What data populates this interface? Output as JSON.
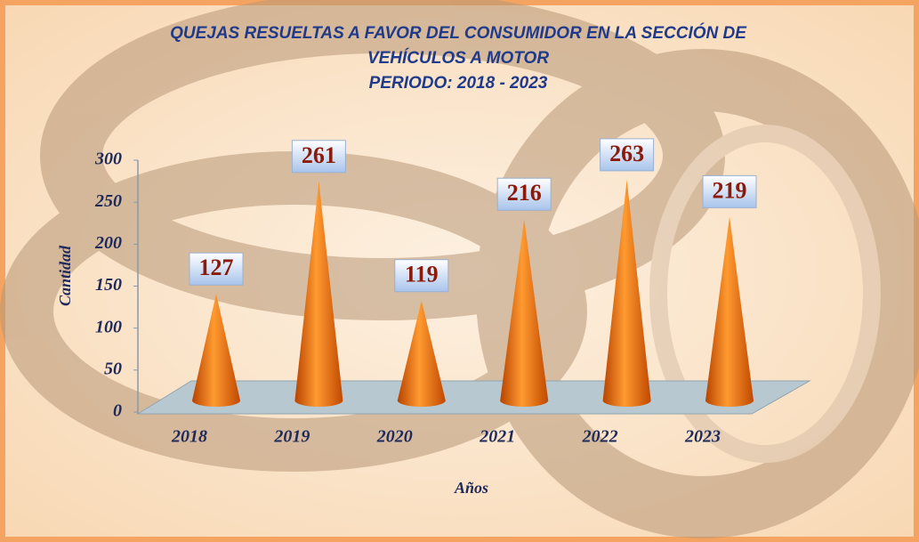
{
  "chart_data": {
    "type": "cone",
    "title": [
      "QUEJAS RESUELTAS A FAVOR DEL CONSUMIDOR  EN LA SECCIÓN DE",
      "VEHÍCULOS A MOTOR",
      "PERIODO: 2018 - 2023"
    ],
    "x_label": "Años",
    "y_label": "Cantidad",
    "categories": [
      "2018",
      "2019",
      "2020",
      "2021",
      "2022",
      "2023"
    ],
    "values": [
      127,
      261,
      119,
      216,
      263,
      219
    ],
    "color": "#f07010",
    "ylim": [
      0,
      300
    ],
    "yticks": [
      0,
      50,
      100,
      150,
      200,
      250,
      300
    ]
  }
}
